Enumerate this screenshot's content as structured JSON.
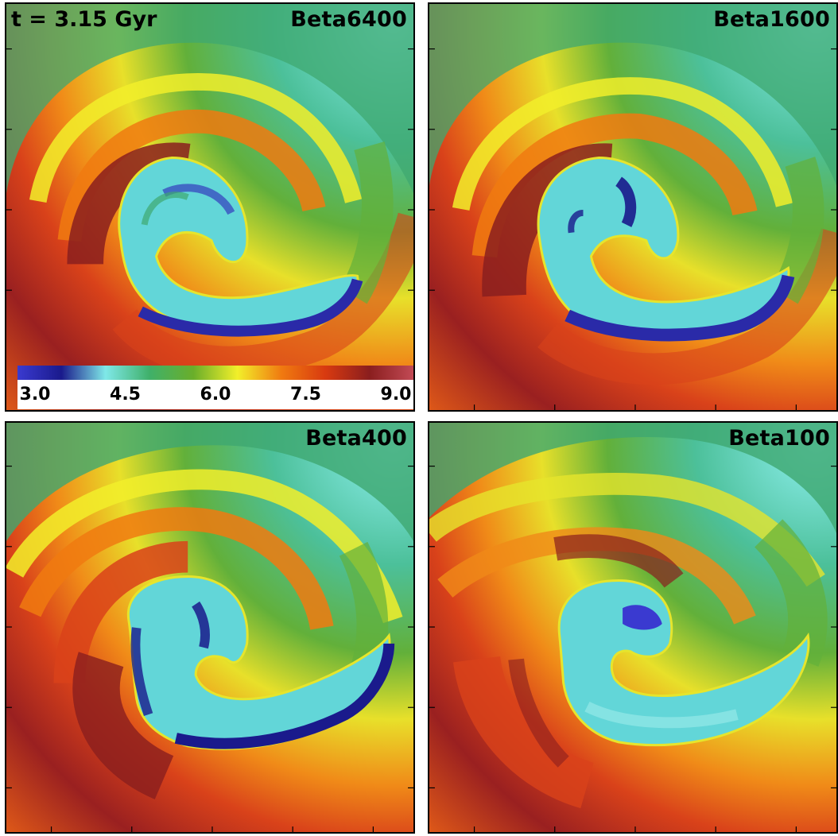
{
  "time_label": "t = 3.15 Gyr",
  "panels": [
    {
      "title": "Beta6400"
    },
    {
      "title": "Beta1600"
    },
    {
      "title": "Beta400"
    },
    {
      "title": "Beta100"
    }
  ],
  "colorbar": {
    "min": 3.0,
    "max": 9.0,
    "tick_labels": [
      "3.0",
      "4.5",
      "6.0",
      "7.5",
      "9.0"
    ],
    "tick_values": [
      3.0,
      4.5,
      6.0,
      7.5,
      9.0
    ],
    "colors": [
      "#3a3ad0",
      "#1a1a8c",
      "#7fe8e8",
      "#3fb06a",
      "#6aae2a",
      "#f2ef2a",
      "#f07a10",
      "#d83a10",
      "#8a1e1e",
      "#c24a55"
    ]
  }
}
